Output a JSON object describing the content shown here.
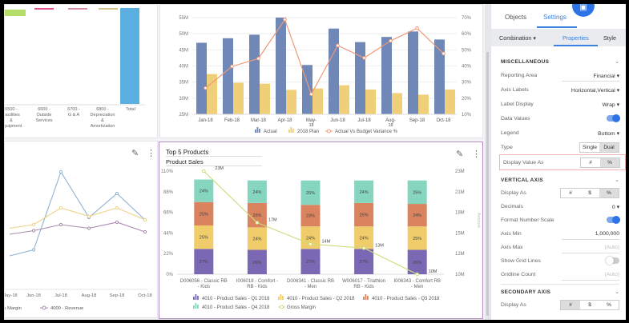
{
  "waterfall": {
    "categories": [
      "6500 - Facilities & Equipment",
      "6600 - Outside Services",
      "6700 - G & A",
      "6800 - Depreciation & Amortization",
      "Total"
    ],
    "colors": [
      "#b5dd6a",
      "#e4508f",
      "#d98fa8",
      "#d4c48a",
      "#5aaee0"
    ]
  },
  "combo_chart": {
    "type": "bar",
    "categories": [
      "Jan-18",
      "Feb-18",
      "Mar-18",
      "Apr-18",
      "May-18",
      "Jun-18",
      "Jul-18",
      "Aug-18",
      "Sep-18",
      "Oct-18"
    ],
    "y_ticks": [
      "55M",
      "50M",
      "45M",
      "40M",
      "35M",
      "30M",
      "25M"
    ],
    "y2_ticks": [
      "70%",
      "60%",
      "50%",
      "40%",
      "30%",
      "20%",
      "10%"
    ],
    "ylim": [
      25,
      55
    ],
    "y2lim": [
      10,
      70
    ],
    "series": [
      {
        "name": "Actual",
        "type": "bar",
        "color": "#6f88b8",
        "values": [
          47.2,
          48.6,
          49.7,
          55,
          40.3,
          51.6,
          47.4,
          49,
          50.7,
          48.2
        ]
      },
      {
        "name": "2018 Plan",
        "type": "bar",
        "color": "#efcf78",
        "values": [
          37.5,
          34.8,
          34.5,
          32.6,
          33,
          34,
          32.7,
          31.6,
          31.1,
          32.7
        ]
      },
      {
        "name": "Actual Vs Budget Variance %",
        "type": "line",
        "color": "#ee9a78",
        "values": [
          26.3,
          39.7,
          44.6,
          68.8,
          22.5,
          52.7,
          45,
          55.6,
          63.4,
          47.7
        ]
      }
    ]
  },
  "line_chart": {
    "type": "line",
    "categories": [
      "May-18",
      "Jun-18",
      "Jul-18",
      "Aug-18",
      "Sep-18",
      "Oct-18"
    ],
    "legend": [
      "Gross Margin",
      "4000 - Revenue"
    ],
    "series": [
      {
        "color": "#8fb2d6",
        "values": [
          30,
          35,
          100,
          62,
          82,
          60
        ]
      },
      {
        "color": "#f0d38a",
        "values": [
          53,
          56,
          70,
          63,
          70,
          60
        ]
      },
      {
        "name": "4000 - Revenue",
        "color": "#a98ab0",
        "values": [
          48,
          51,
          56,
          53,
          58,
          50
        ]
      }
    ]
  },
  "products_chart": {
    "type": "bar",
    "title": "Top 5 Products",
    "subtitle": "Product Sales",
    "ylabel2": "Amount",
    "categories": [
      "D006056 - Classic RB - Kids",
      "I006018 - Comfort - RB - Kids",
      "D006341 - Classic RB - Men",
      "W006017 - Triathlon RB - Kids",
      "I006343 - Comfort RB - Men"
    ],
    "y_ticks": [
      "110%",
      "88%",
      "66%",
      "44%",
      "22%",
      "0%"
    ],
    "y2_ticks": [
      "23M",
      "21M",
      "18M",
      "15M",
      "12M",
      "10M"
    ],
    "series": [
      {
        "name": "4010 - Product Sales - Q1 2018",
        "color": "#7b68b5",
        "values": [
          27,
          26,
          27,
          27,
          26
        ]
      },
      {
        "name": "4010 - Product Sales - Q2 2018",
        "color": "#f0cd6a",
        "values": [
          25,
          24,
          24,
          24,
          25
        ]
      },
      {
        "name": "4010 - Product Sales - Q3 2018",
        "color": "#d9835f",
        "values": [
          25,
          26,
          23,
          25,
          24
        ]
      },
      {
        "name": "4010 - Product Sales - Q4 2018",
        "color": "#86d6bf",
        "values": [
          24,
          24,
          26,
          24,
          25
        ]
      },
      {
        "name": "Gross Margin",
        "type": "line",
        "color": "#c9dd7a",
        "values": [
          23,
          16.5,
          13.8,
          13.3,
          10
        ],
        "labels": [
          "23M",
          "17M",
          "14M",
          "13M",
          "10M"
        ]
      }
    ]
  },
  "settings": {
    "tabs": [
      "Objects",
      "Settings"
    ],
    "subtabs": [
      "Combination ▾",
      "Properties",
      "Style"
    ],
    "misc": {
      "title": "MISCELLANEOUS",
      "reporting_area": [
        "Reporting Area",
        "Financial ▾"
      ],
      "axis_labels": [
        "Axis Labels",
        "Horizontal,Vertical ▾"
      ],
      "label_display": [
        "Label Display",
        "Wrap ▾"
      ],
      "data_values": "Data Values",
      "legend": [
        "Legend",
        "Bottom ▾"
      ],
      "type": [
        "Type",
        "Single",
        "Dual"
      ],
      "display_value_as": [
        "Display Value As",
        "#",
        "%"
      ]
    },
    "vaxis": {
      "title": "VERTICAL AXIS",
      "display_as": [
        "Display As",
        "#",
        "$",
        "%"
      ],
      "decimals": [
        "Decimals",
        "0 ▾"
      ],
      "format_number_scale": "Format Number Scale",
      "axis_min": [
        "Axis Min",
        "1,000,000"
      ],
      "axis_max": [
        "Axis Max",
        "(Auto)"
      ],
      "show_grid_lines": "Show Grid Lines",
      "gridline_count": [
        "Gridline Count",
        "(Auto)"
      ]
    },
    "saxis": {
      "title": "SECONDARY AXIS",
      "display_as": [
        "Display As",
        "#",
        "$",
        "%"
      ]
    }
  }
}
